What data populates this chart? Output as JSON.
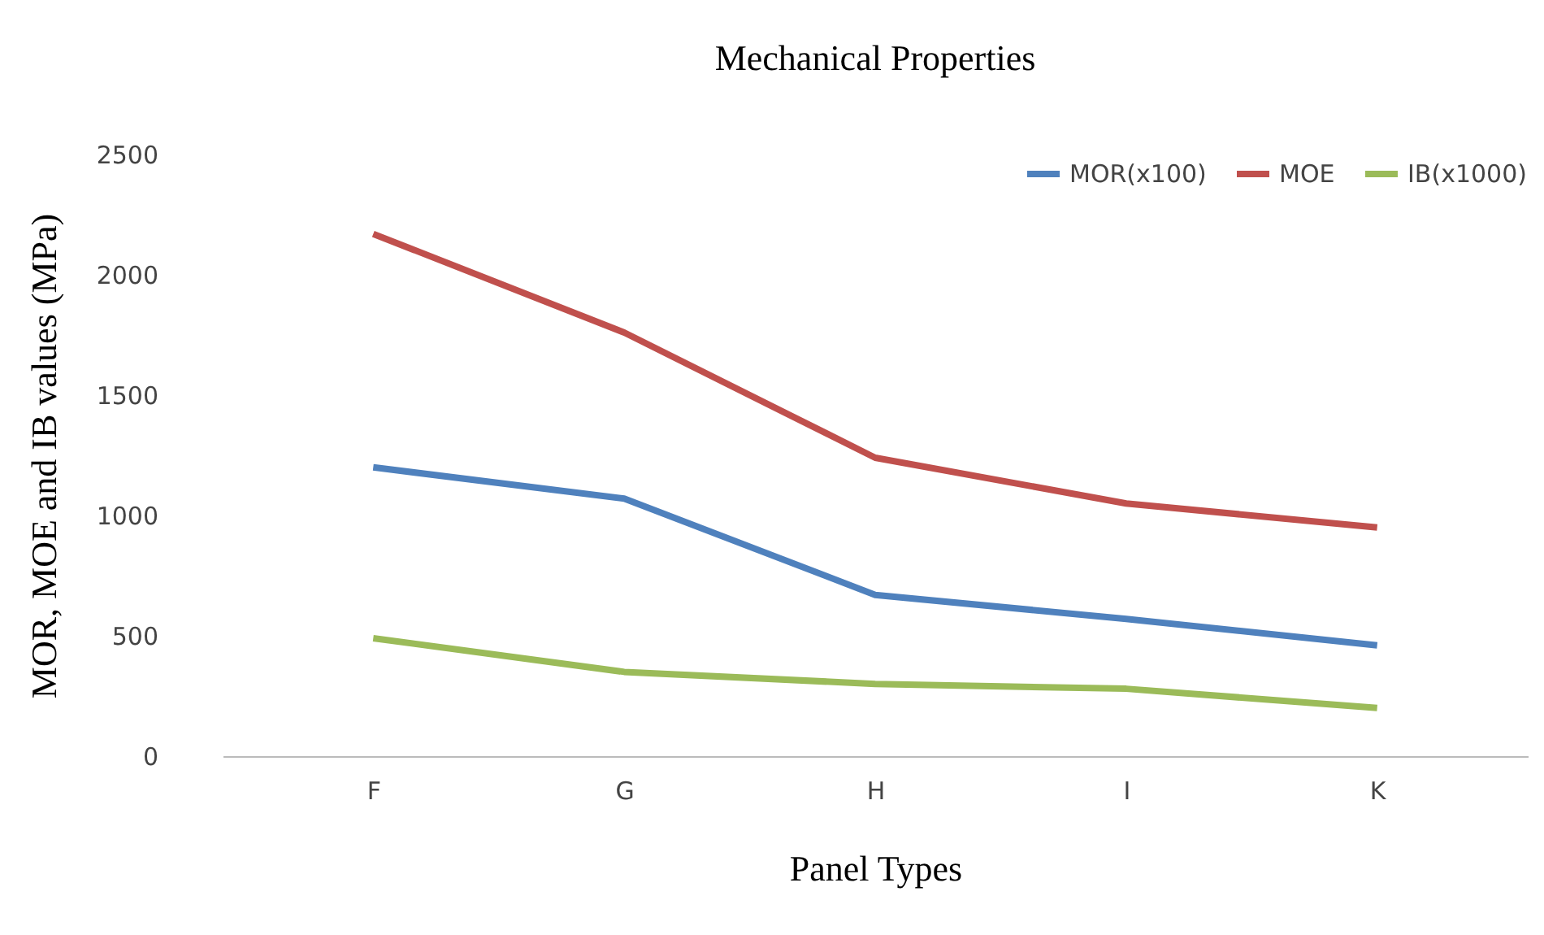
{
  "chart_data": {
    "type": "line",
    "title": "Mechanical Properties",
    "xlabel": "Panel Types",
    "ylabel": "MOR, MOE and IB values (MPa)",
    "categories": [
      "F",
      "G",
      "H",
      "I",
      "K"
    ],
    "series": [
      {
        "name": "MOR(x100)",
        "color": "#4f81bd",
        "values": [
          1200,
          1070,
          670,
          570,
          460
        ]
      },
      {
        "name": "MOE",
        "color": "#c0504d",
        "values": [
          2170,
          1760,
          1240,
          1050,
          950
        ]
      },
      {
        "name": "IB(x1000)",
        "color": "#9bbb59",
        "values": [
          490,
          350,
          300,
          280,
          200
        ]
      }
    ],
    "ylim": [
      0,
      2500
    ],
    "yticks": [
      0,
      500,
      1000,
      1500,
      2000,
      2500
    ],
    "grid": false,
    "legend": "top right",
    "marker": "none",
    "line_style": "solid"
  }
}
